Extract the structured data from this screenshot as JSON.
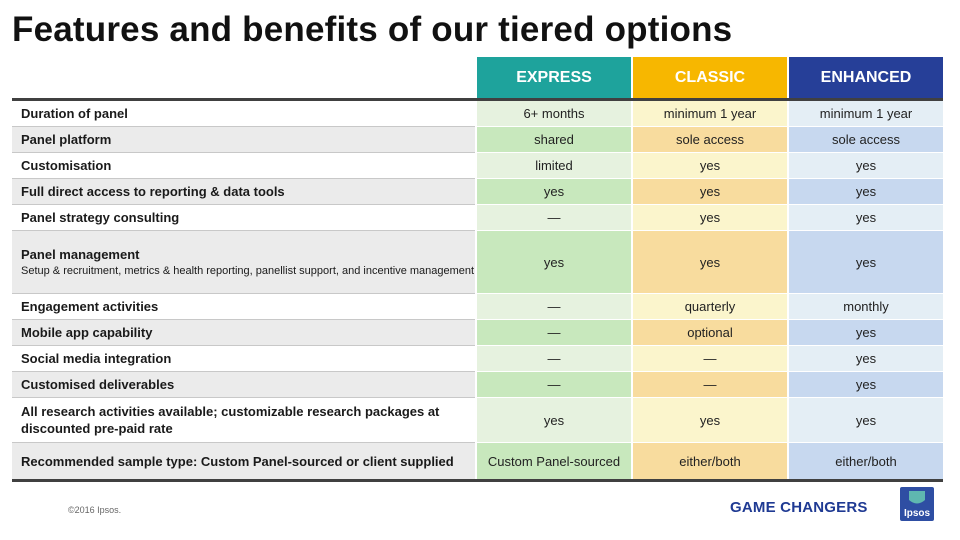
{
  "title": "Features and benefits of our tiered options",
  "columns": [
    {
      "label": "EXPRESS",
      "header_color": "#1ea39c",
      "shade_light": "#e6f2df",
      "shade_dark": "#c8e8bd"
    },
    {
      "label": "CLASSIC",
      "header_color": "#f7b700",
      "shade_light": "#fbf5cc",
      "shade_dark": "#f8dc9e"
    },
    {
      "label": "ENHANCED",
      "header_color": "#263f98",
      "shade_light": "#e4eef5",
      "shade_dark": "#c7d8ef"
    }
  ],
  "rows": [
    {
      "feature": "Duration of panel",
      "values": [
        "6+ months",
        "minimum  1 year",
        "minimum  1 year"
      ]
    },
    {
      "feature": "Panel platform",
      "values": [
        "shared",
        "sole access",
        "sole access"
      ]
    },
    {
      "feature": "Customisation",
      "values": [
        "limited",
        "yes",
        "yes"
      ]
    },
    {
      "feature": "Full direct access to reporting & data tools",
      "values": [
        "yes",
        "yes",
        "yes"
      ]
    },
    {
      "feature": "Panel strategy consulting",
      "values": [
        "—",
        "yes",
        "yes"
      ]
    },
    {
      "feature": "Panel management",
      "subtext": "Setup & recruitment, metrics & health reporting, panellist support, and incentive management",
      "values": [
        "yes",
        "yes",
        "yes"
      ]
    },
    {
      "feature": "Engagement activities",
      "values": [
        "—",
        "quarterly",
        "monthly"
      ]
    },
    {
      "feature": "Mobile app capability",
      "values": [
        "—",
        "optional",
        "yes"
      ]
    },
    {
      "feature": "Social media integration",
      "values": [
        "—",
        "—",
        "yes"
      ]
    },
    {
      "feature": "Customised deliverables",
      "values": [
        "—",
        "—",
        "yes"
      ]
    },
    {
      "feature": "All research activities available; customizable research packages at discounted pre-paid rate",
      "values": [
        "yes",
        "yes",
        "yes"
      ]
    },
    {
      "feature": "Recommended sample type: Custom Panel-sourced or client supplied",
      "values": [
        "Custom Panel-sourced",
        "either/both",
        "either/both"
      ]
    }
  ],
  "footer": {
    "copyright": "©2016 Ipsos.",
    "tagline": "GAME CHANGERS",
    "logo_text": "Ipsos"
  }
}
